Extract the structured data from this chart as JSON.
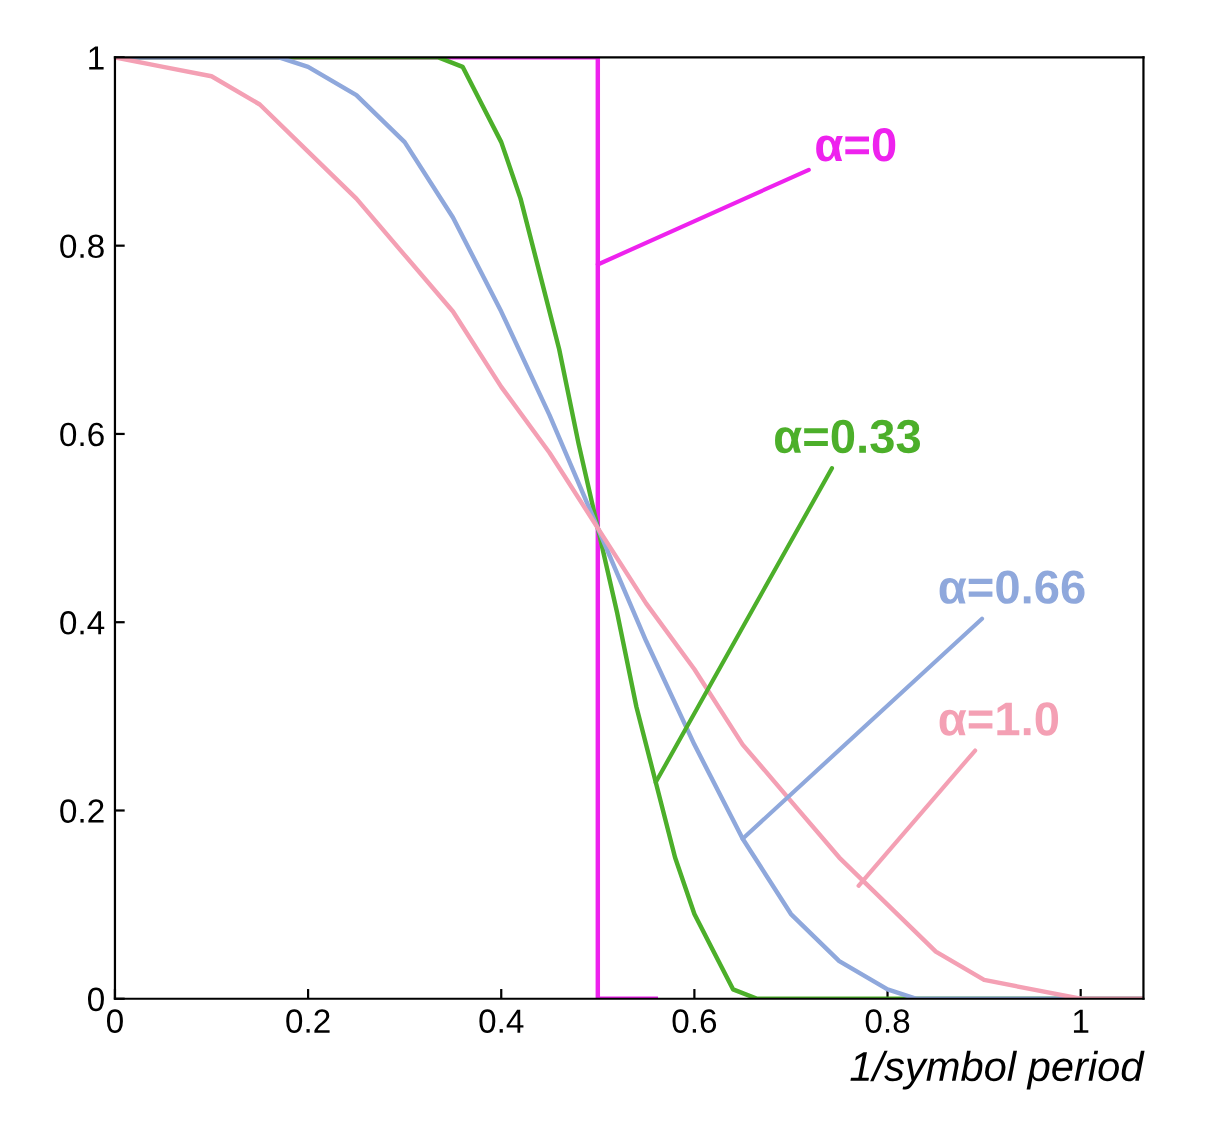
{
  "chart_data": {
    "type": "line",
    "xlabel": "1/symbol period",
    "xlim": [
      0,
      1.065
    ],
    "ylim": [
      0,
      1
    ],
    "xticks": [
      0,
      0.2,
      0.4,
      0.6,
      0.8,
      1
    ],
    "yticks": [
      0,
      0.2,
      0.4,
      0.6,
      0.8,
      1
    ],
    "grid": false,
    "legend": false,
    "marker": "none",
    "line_style": "solid",
    "series": [
      {
        "color": "#ee22ee",
        "x": [
          0,
          0.5,
          0.5,
          0.56
        ],
        "values": [
          1,
          1,
          0,
          0
        ]
      },
      {
        "color": "#4caf2a",
        "x": [
          0,
          0.335,
          0.36,
          0.38,
          0.4,
          0.42,
          0.44,
          0.46,
          0.48,
          0.5,
          0.52,
          0.54,
          0.56,
          0.58,
          0.6,
          0.62,
          0.64,
          0.665,
          1.065
        ],
        "values": [
          1,
          1,
          0.99,
          0.95,
          0.91,
          0.85,
          0.77,
          0.69,
          0.59,
          0.5,
          0.41,
          0.31,
          0.23,
          0.15,
          0.09,
          0.05,
          0.01,
          0,
          0
        ]
      },
      {
        "color": "#8fa8dc",
        "x": [
          0,
          0.17,
          0.2,
          0.25,
          0.3,
          0.35,
          0.4,
          0.45,
          0.5,
          0.55,
          0.6,
          0.65,
          0.7,
          0.75,
          0.8,
          0.83,
          1.065
        ],
        "values": [
          1,
          1,
          0.99,
          0.96,
          0.91,
          0.83,
          0.73,
          0.62,
          0.5,
          0.38,
          0.27,
          0.17,
          0.09,
          0.04,
          0.01,
          0,
          0
        ]
      },
      {
        "color": "#f4a0b4",
        "x": [
          0,
          0.05,
          0.1,
          0.15,
          0.2,
          0.25,
          0.3,
          0.35,
          0.4,
          0.45,
          0.5,
          0.55,
          0.6,
          0.65,
          0.7,
          0.75,
          0.8,
          0.85,
          0.9,
          0.95,
          1,
          1.065
        ],
        "values": [
          1,
          0.99,
          0.98,
          0.95,
          0.9,
          0.85,
          0.79,
          0.73,
          0.65,
          0.58,
          0.5,
          0.42,
          0.35,
          0.27,
          0.21,
          0.15,
          0.1,
          0.05,
          0.02,
          0.01,
          0,
          0
        ]
      }
    ],
    "annotations": [
      {
        "text": "α=0",
        "x": 0.5,
        "y": 0.78
      },
      {
        "text": "α=0.33",
        "x": 0.56,
        "y": 0.23
      },
      {
        "text": "α=0.66",
        "x": 0.65,
        "y": 0.17
      },
      {
        "text": "α=1.0",
        "x": 0.77,
        "y": 0.12
      }
    ]
  }
}
